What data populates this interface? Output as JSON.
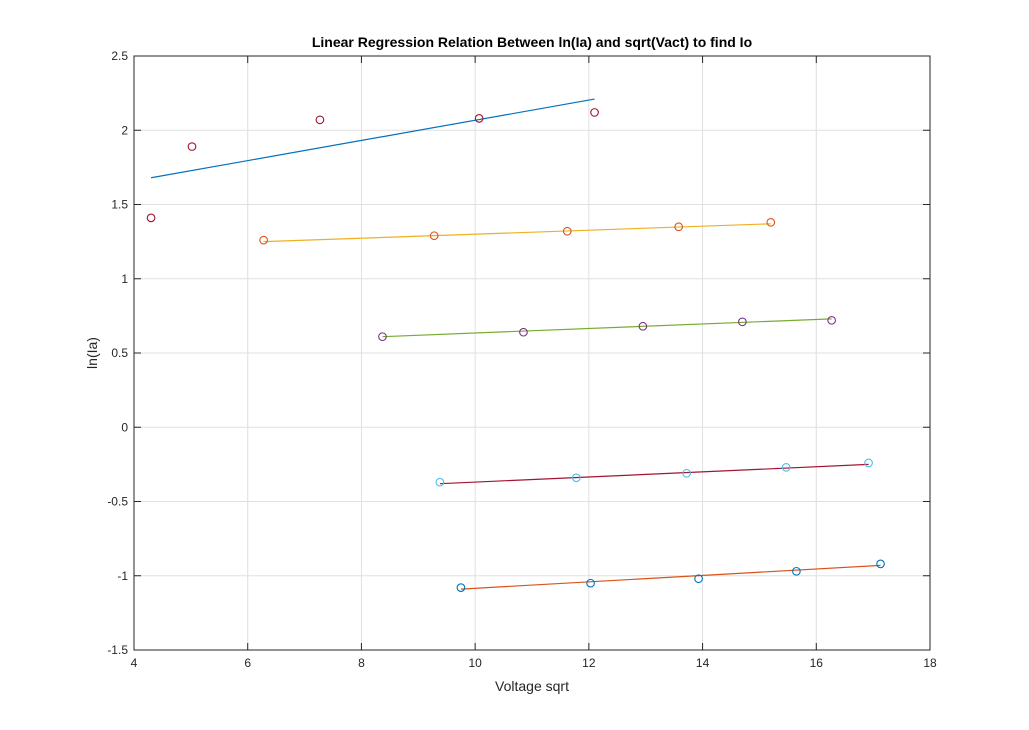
{
  "chart_data": {
    "type": "scatter",
    "title": "Linear Regression Relation Between ln(Ia) and sqrt(Vact) to find Io",
    "xlabel": "Voltage sqrt",
    "ylabel": "ln(Ia)",
    "xlim": [
      4,
      18
    ],
    "ylim": [
      -1.5,
      2.5
    ],
    "xticks": [
      4,
      6,
      8,
      10,
      12,
      14,
      16,
      18
    ],
    "yticks": [
      -1.5,
      -1,
      -0.5,
      0,
      0.5,
      1,
      1.5,
      2,
      2.5
    ],
    "xtick_labels": [
      "4",
      "6",
      "8",
      "10",
      "12",
      "14",
      "16",
      "18"
    ],
    "ytick_labels": [
      "-1.5",
      "-1",
      "-0.5",
      "0",
      "0.5",
      "1",
      "1.5",
      "2",
      "2.5"
    ],
    "grid": true,
    "series": [
      {
        "marker": "circle",
        "marker_color": "#a2142f",
        "points": [
          [
            4.3,
            1.41
          ],
          [
            5.02,
            1.89
          ],
          [
            7.27,
            2.07
          ],
          [
            10.07,
            2.08
          ],
          [
            12.1,
            2.12
          ]
        ],
        "fit_color": "#0072bd",
        "fit_line": [
          [
            4.3,
            1.68
          ],
          [
            12.1,
            2.21
          ]
        ]
      },
      {
        "marker": "circle",
        "marker_color": "#d95319",
        "points": [
          [
            6.28,
            1.26
          ],
          [
            9.28,
            1.29
          ],
          [
            11.62,
            1.32
          ],
          [
            13.58,
            1.35
          ],
          [
            15.2,
            1.38
          ]
        ],
        "fit_color": "#edb120",
        "fit_line": [
          [
            6.28,
            1.25
          ],
          [
            15.2,
            1.37
          ]
        ]
      },
      {
        "marker": "circle",
        "marker_color": "#7e2f8e",
        "points": [
          [
            8.37,
            0.61
          ],
          [
            10.85,
            0.64
          ],
          [
            12.95,
            0.68
          ],
          [
            14.7,
            0.71
          ],
          [
            16.27,
            0.72
          ]
        ],
        "fit_color": "#77ac30",
        "fit_line": [
          [
            8.37,
            0.61
          ],
          [
            16.27,
            0.73
          ]
        ]
      },
      {
        "marker": "circle",
        "marker_color": "#4dbeee",
        "points": [
          [
            9.38,
            -0.37
          ],
          [
            11.78,
            -0.34
          ],
          [
            13.72,
            -0.31
          ],
          [
            15.47,
            -0.27
          ],
          [
            16.92,
            -0.24
          ]
        ],
        "fit_color": "#a2142f",
        "fit_line": [
          [
            9.38,
            -0.38
          ],
          [
            16.92,
            -0.25
          ]
        ]
      },
      {
        "marker": "circle",
        "marker_color": "#0072bd",
        "points": [
          [
            9.75,
            -1.08
          ],
          [
            12.03,
            -1.05
          ],
          [
            13.93,
            -1.02
          ],
          [
            15.65,
            -0.97
          ],
          [
            17.13,
            -0.92
          ]
        ],
        "fit_color": "#d95319",
        "fit_line": [
          [
            9.75,
            -1.09
          ],
          [
            17.13,
            -0.93
          ]
        ]
      }
    ]
  }
}
